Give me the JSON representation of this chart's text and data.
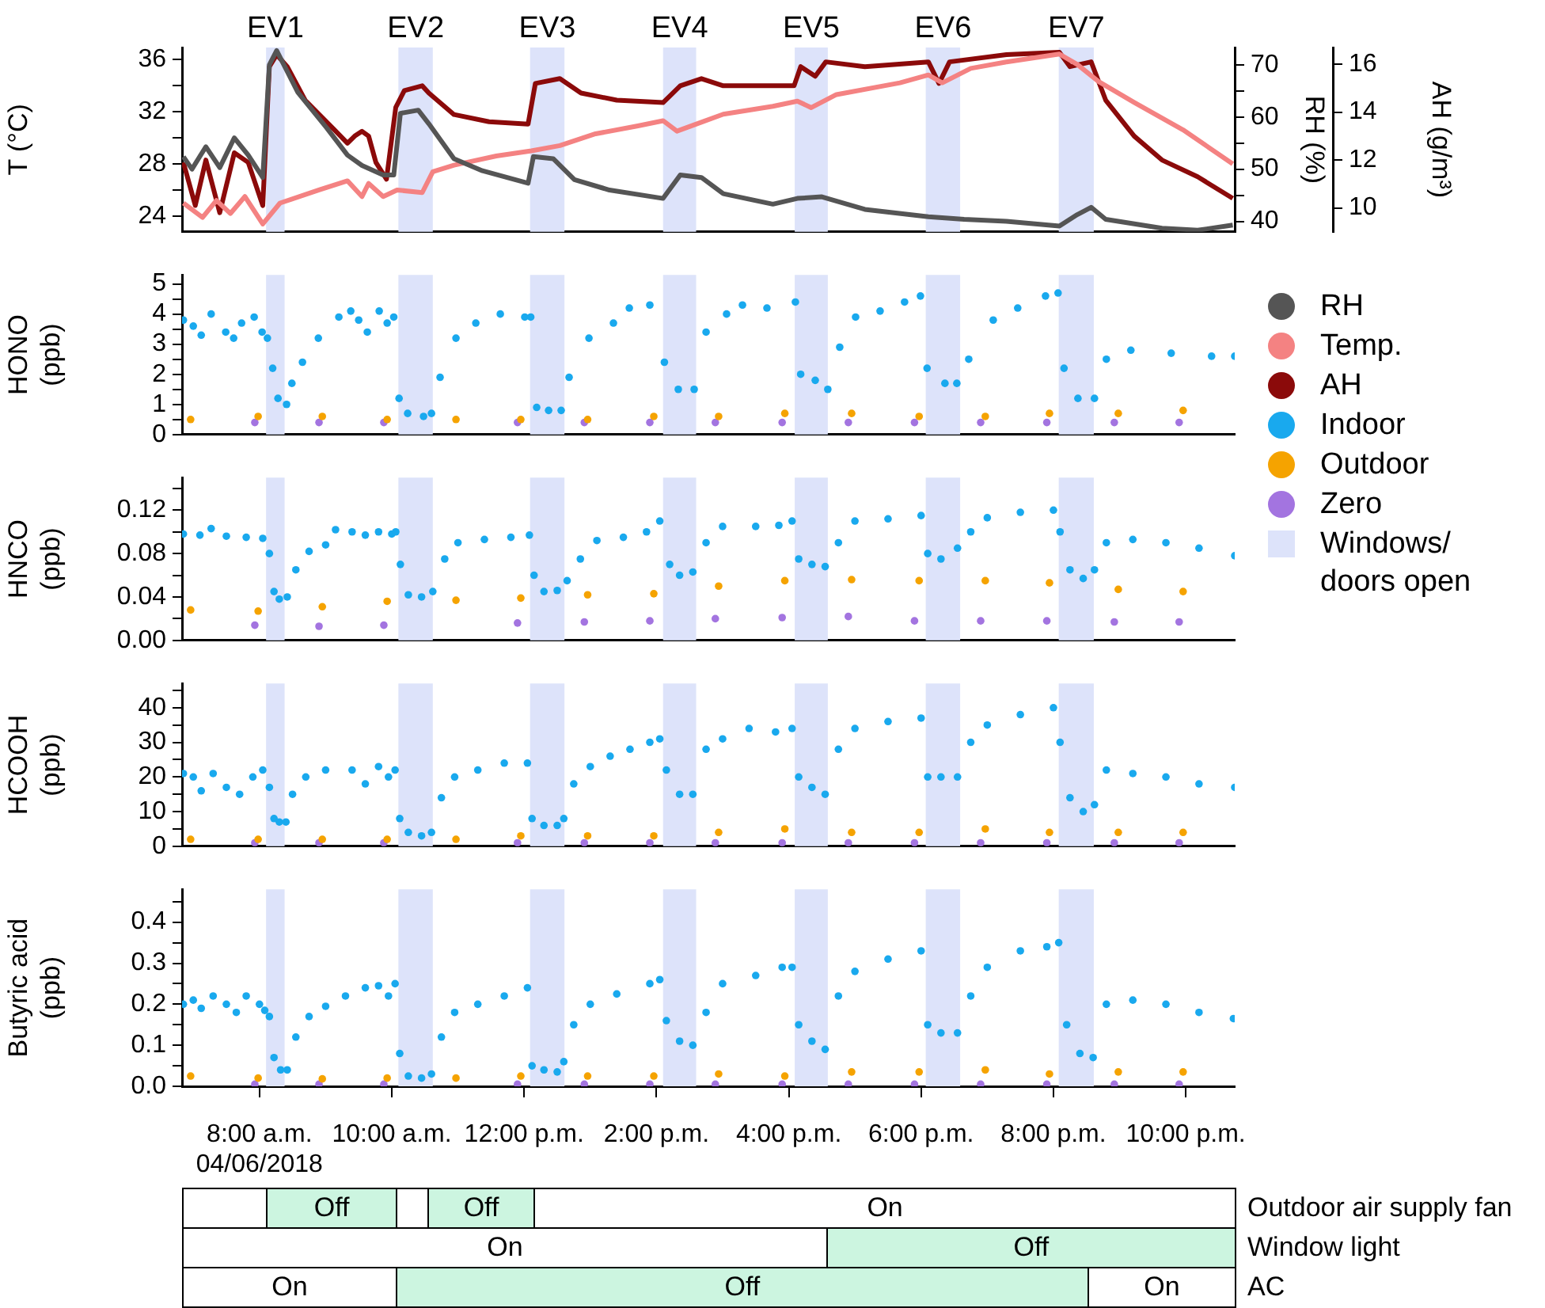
{
  "chart_data": [
    {
      "type": "line",
      "marker": "none",
      "tick_labels": "y",
      "legend": "right",
      "ylabel": "T (°C)",
      "y2label": "RH (%)",
      "y3label": "AH (g/m³)",
      "xlim": [
        6.83,
        22.74
      ],
      "ylim": [
        22.8,
        36.9
      ],
      "yticks": [
        24,
        {
          "value": 26,
          "label": null
        },
        28,
        {
          "value": 30,
          "label": null
        },
        32,
        {
          "value": 34,
          "label": null
        },
        36
      ],
      "y2lim": [
        38,
        73.3
      ],
      "y2ticks": [
        40,
        {
          "value": 45,
          "label": null
        },
        50,
        {
          "value": 55,
          "label": null
        },
        60,
        {
          "value": 65,
          "label": null
        },
        70
      ],
      "y3lim": [
        9,
        16.7
      ],
      "y3ticks": [
        10,
        12,
        14,
        16
      ],
      "bands": [
        {
          "axis": "x",
          "from": 8.1,
          "to": 8.38,
          "label": "EV1",
          "color": "#dde3fa"
        },
        {
          "axis": "x",
          "from": 10.1,
          "to": 10.62,
          "label": "EV2",
          "color": "#dde3fa"
        },
        {
          "axis": "x",
          "from": 12.09,
          "to": 12.61,
          "label": "EV3",
          "color": "#dde3fa"
        },
        {
          "axis": "x",
          "from": 14.1,
          "to": 14.6,
          "label": "EV4",
          "color": "#dde3fa"
        },
        {
          "axis": "x",
          "from": 16.09,
          "to": 16.59,
          "label": "EV5",
          "color": "#dde3fa"
        },
        {
          "axis": "x",
          "from": 18.07,
          "to": 18.59,
          "label": "EV6",
          "color": "#dde3fa"
        },
        {
          "axis": "x",
          "from": 20.08,
          "to": 20.61,
          "label": "EV7",
          "color": "#dde3fa"
        }
      ],
      "series": [
        {
          "name": "RH",
          "color": "#555555",
          "axis": "y2",
          "x": [
            6.85,
            6.98,
            7.19,
            7.4,
            7.62,
            7.83,
            8.05,
            8.15,
            8.26,
            8.58,
            9.01,
            9.33,
            9.55,
            9.87,
            10.03,
            10.13,
            10.4,
            10.56,
            10.94,
            11.37,
            12.06,
            12.14,
            12.44,
            12.76,
            13.29,
            14.1,
            14.36,
            14.68,
            15.01,
            15.76,
            16.13,
            16.5,
            17.15,
            18.11,
            18.65,
            19.29,
            20.09,
            20.36,
            20.57,
            20.79,
            21.64,
            22.18,
            22.71
          ],
          "values": [
            52.4,
            50.0,
            54.3,
            50.3,
            56.0,
            52.7,
            48.4,
            70.0,
            72.7,
            64.7,
            58.0,
            52.7,
            50.7,
            48.9,
            48.9,
            60.7,
            61.3,
            58.7,
            52.0,
            49.7,
            47.3,
            52.4,
            52.0,
            48.0,
            46.0,
            44.4,
            48.9,
            48.4,
            45.3,
            43.3,
            44.4,
            44.7,
            42.3,
            40.9,
            40.4,
            40.0,
            39.1,
            41.3,
            42.7,
            40.4,
            38.7,
            38.3,
            39.3
          ]
        },
        {
          "name": "Temp.",
          "color": "#f48282",
          "x": [
            6.85,
            7.14,
            7.35,
            7.56,
            7.78,
            8.05,
            8.31,
            8.9,
            9.33,
            9.55,
            9.65,
            9.87,
            10.08,
            10.46,
            10.62,
            10.94,
            11.58,
            12.11,
            12.54,
            13.08,
            13.72,
            14.1,
            14.31,
            14.58,
            15.01,
            15.76,
            16.13,
            16.34,
            16.72,
            17.68,
            18.11,
            18.32,
            18.75,
            19.29,
            20.09,
            20.36,
            20.68,
            21.22,
            21.96,
            22.71
          ],
          "values": [
            25.0,
            23.9,
            25.2,
            24.2,
            25.5,
            23.4,
            25.0,
            26.0,
            26.7,
            25.5,
            26.5,
            25.5,
            26.0,
            25.8,
            27.4,
            27.9,
            28.6,
            29.0,
            29.4,
            30.3,
            30.9,
            31.3,
            30.5,
            31.0,
            31.8,
            32.4,
            32.8,
            32.3,
            33.3,
            34.2,
            34.8,
            34.2,
            35.3,
            35.8,
            36.4,
            35.6,
            34.3,
            32.7,
            30.6,
            28.0
          ]
        },
        {
          "name": "AH",
          "color": "#8b0a0a",
          "axis": "y3",
          "x": [
            6.85,
            7.03,
            7.19,
            7.4,
            7.62,
            7.83,
            8.05,
            8.15,
            8.26,
            8.42,
            8.69,
            9.12,
            9.33,
            9.44,
            9.55,
            9.65,
            9.76,
            9.92,
            10.06,
            10.19,
            10.46,
            10.56,
            10.94,
            11.47,
            12.06,
            12.17,
            12.54,
            12.86,
            13.4,
            14.1,
            14.36,
            14.68,
            15.01,
            16.08,
            16.18,
            16.4,
            16.56,
            17.15,
            18.11,
            18.27,
            18.43,
            19.29,
            20.09,
            20.25,
            20.57,
            20.79,
            21.22,
            21.64,
            22.18,
            22.71
          ],
          "values": [
            11.9,
            10.1,
            12.0,
            9.8,
            12.3,
            11.9,
            10.1,
            15.9,
            16.4,
            15.9,
            14.5,
            13.3,
            12.7,
            13.0,
            13.2,
            13.0,
            11.9,
            11.2,
            14.2,
            14.9,
            15.1,
            14.8,
            13.9,
            13.6,
            13.5,
            15.2,
            15.4,
            14.8,
            14.5,
            14.4,
            15.1,
            15.4,
            15.1,
            15.1,
            15.9,
            15.5,
            16.1,
            15.9,
            16.1,
            15.2,
            16.1,
            16.4,
            16.5,
            15.9,
            16.1,
            14.5,
            13.0,
            12.0,
            11.3,
            10.4
          ]
        }
      ]
    },
    {
      "type": "scatter",
      "marker": "circle",
      "tick_labels": "y",
      "legend": "right",
      "ylabel": "HONO\n(ppb)",
      "xlim": [
        6.83,
        22.74
      ],
      "ylim": [
        0,
        5.3
      ],
      "yticks": [
        0,
        {
          "value": 0.5,
          "label": null
        },
        1,
        {
          "value": 1.5,
          "label": null
        },
        2,
        {
          "value": 2.5,
          "label": null
        },
        3,
        {
          "value": 3.5,
          "label": null
        },
        4,
        {
          "value": 4.5,
          "label": null
        },
        5
      ],
      "annotations": [
        "Windows/\ndoors open"
      ],
      "bands": [
        {
          "axis": "x",
          "from": 8.1,
          "to": 8.38,
          "color": "#dde3fa"
        },
        {
          "axis": "x",
          "from": 10.1,
          "to": 10.62,
          "color": "#dde3fa"
        },
        {
          "axis": "x",
          "from": 12.09,
          "to": 12.61,
          "color": "#dde3fa"
        },
        {
          "axis": "x",
          "from": 14.1,
          "to": 14.6,
          "color": "#dde3fa"
        },
        {
          "axis": "x",
          "from": 16.09,
          "to": 16.59,
          "color": "#dde3fa"
        },
        {
          "axis": "x",
          "from": 18.07,
          "to": 18.59,
          "color": "#dde3fa"
        },
        {
          "axis": "x",
          "from": 20.08,
          "to": 20.61,
          "color": "#dde3fa"
        }
      ],
      "series": [
        {
          "name": "Indoor",
          "color": "#19a9ee",
          "x": [
            6.85,
            7.0,
            7.12,
            7.27,
            7.49,
            7.61,
            7.73,
            7.92,
            8.04,
            8.12,
            8.2,
            8.28,
            8.41,
            8.49,
            8.65,
            8.89,
            9.2,
            9.38,
            9.5,
            9.63,
            9.81,
            9.93,
            10.03,
            10.11,
            10.24,
            10.48,
            10.6,
            10.73,
            10.97,
            11.27,
            11.64,
            12.01,
            12.1,
            12.19,
            12.37,
            12.56,
            12.68,
            12.98,
            13.35,
            13.59,
            13.9,
            14.12,
            14.33,
            14.57,
            14.75,
            15.06,
            15.3,
            15.67,
            16.1,
            16.18,
            16.4,
            16.59,
            16.77,
            17.01,
            17.38,
            17.75,
            17.99,
            18.09,
            18.36,
            18.54,
            18.72,
            19.09,
            19.46,
            19.88,
            20.07,
            20.16,
            20.37,
            20.62,
            20.8,
            21.17,
            21.78,
            22.39,
            22.74
          ],
          "values": [
            3.8,
            3.6,
            3.3,
            4.0,
            3.4,
            3.2,
            3.7,
            3.9,
            3.4,
            3.2,
            2.2,
            1.2,
            1.0,
            1.7,
            2.4,
            3.2,
            3.9,
            4.1,
            3.8,
            3.4,
            4.1,
            3.7,
            3.9,
            1.2,
            0.7,
            0.6,
            0.7,
            1.9,
            3.2,
            3.7,
            4.0,
            3.9,
            3.9,
            0.9,
            0.8,
            0.8,
            1.9,
            3.2,
            3.7,
            4.2,
            4.3,
            2.4,
            1.5,
            1.5,
            3.4,
            4.0,
            4.3,
            4.2,
            4.4,
            2.0,
            1.8,
            1.5,
            2.9,
            3.9,
            4.1,
            4.4,
            4.6,
            2.2,
            1.7,
            1.7,
            2.5,
            3.8,
            4.2,
            4.6,
            4.7,
            2.2,
            1.2,
            1.2,
            2.5,
            2.8,
            2.7,
            2.6,
            2.6
          ]
        },
        {
          "name": "Outdoor",
          "color": "#f5a300",
          "x": [
            6.96,
            7.98,
            8.95,
            9.93,
            10.97,
            11.95,
            12.96,
            13.96,
            14.94,
            15.94,
            16.95,
            17.97,
            18.97,
            19.94,
            20.98,
            21.96
          ],
          "values": [
            0.5,
            0.6,
            0.6,
            0.5,
            0.5,
            0.5,
            0.5,
            0.6,
            0.6,
            0.7,
            0.7,
            0.6,
            0.6,
            0.7,
            0.7,
            0.8
          ]
        },
        {
          "name": "Zero",
          "color": "#a374e0",
          "x": [
            7.93,
            8.9,
            9.88,
            11.9,
            12.91,
            13.9,
            14.89,
            15.9,
            16.9,
            17.9,
            18.9,
            19.9,
            20.92,
            21.9
          ],
          "values": [
            0.4,
            0.4,
            0.4,
            0.4,
            0.4,
            0.4,
            0.4,
            0.4,
            0.4,
            0.4,
            0.4,
            0.4,
            0.4,
            0.4
          ]
        }
      ]
    },
    {
      "type": "scatter",
      "marker": "circle",
      "tick_labels": "y",
      "ylabel": "HNCO\n(ppb)",
      "xlim": [
        6.83,
        22.74
      ],
      "ylim": [
        0,
        0.15
      ],
      "yticks": [
        {
          "value": 0,
          "label": "0.00"
        },
        {
          "value": 0.02,
          "label": null
        },
        0.04,
        {
          "value": 0.06,
          "label": null
        },
        0.08,
        {
          "value": 0.1,
          "label": null
        },
        0.12,
        {
          "value": 0.14,
          "label": null
        }
      ],
      "bands": [
        {
          "axis": "x",
          "from": 8.1,
          "to": 8.38,
          "color": "#dde3fa"
        },
        {
          "axis": "x",
          "from": 10.1,
          "to": 10.62,
          "color": "#dde3fa"
        },
        {
          "axis": "x",
          "from": 12.09,
          "to": 12.61,
          "color": "#dde3fa"
        },
        {
          "axis": "x",
          "from": 14.1,
          "to": 14.6,
          "color": "#dde3fa"
        },
        {
          "axis": "x",
          "from": 16.09,
          "to": 16.59,
          "color": "#dde3fa"
        },
        {
          "axis": "x",
          "from": 18.07,
          "to": 18.59,
          "color": "#dde3fa"
        },
        {
          "axis": "x",
          "from": 20.08,
          "to": 20.61,
          "color": "#dde3fa"
        }
      ],
      "series": [
        {
          "color": "#19a9ee",
          "x": [
            6.85,
            7.1,
            7.27,
            7.5,
            7.8,
            8.05,
            8.15,
            8.22,
            8.3,
            8.42,
            8.55,
            8.75,
            9.0,
            9.15,
            9.4,
            9.6,
            9.8,
            10.0,
            10.06,
            10.13,
            10.25,
            10.45,
            10.62,
            10.8,
            11.0,
            11.4,
            11.8,
            12.08,
            12.15,
            12.3,
            12.5,
            12.65,
            12.85,
            13.1,
            13.5,
            13.85,
            14.05,
            14.2,
            14.35,
            14.55,
            14.75,
            15.0,
            15.5,
            15.85,
            16.05,
            16.15,
            16.35,
            16.55,
            16.75,
            17.0,
            17.5,
            18.0,
            18.1,
            18.3,
            18.55,
            18.75,
            19.0,
            19.5,
            20.0,
            20.1,
            20.25,
            20.45,
            20.62,
            20.8,
            21.2,
            21.7,
            22.2,
            22.74
          ],
          "values": [
            0.098,
            0.097,
            0.103,
            0.096,
            0.095,
            0.094,
            0.08,
            0.045,
            0.038,
            0.04,
            0.065,
            0.082,
            0.088,
            0.102,
            0.1,
            0.097,
            0.1,
            0.098,
            0.1,
            0.07,
            0.042,
            0.04,
            0.045,
            0.075,
            0.09,
            0.093,
            0.095,
            0.097,
            0.06,
            0.045,
            0.046,
            0.055,
            0.075,
            0.092,
            0.095,
            0.1,
            0.11,
            0.07,
            0.06,
            0.063,
            0.09,
            0.105,
            0.105,
            0.106,
            0.11,
            0.075,
            0.07,
            0.068,
            0.09,
            0.11,
            0.112,
            0.115,
            0.08,
            0.075,
            0.085,
            0.1,
            0.113,
            0.118,
            0.12,
            0.1,
            0.065,
            0.057,
            0.065,
            0.09,
            0.093,
            0.09,
            0.085,
            0.078
          ]
        },
        {
          "color": "#f5a300",
          "x": [
            6.96,
            7.98,
            8.95,
            9.93,
            10.97,
            11.95,
            12.96,
            13.96,
            14.94,
            15.94,
            16.95,
            17.97,
            18.97,
            19.94,
            20.98,
            21.96
          ],
          "values": [
            0.028,
            0.027,
            0.031,
            0.036,
            0.037,
            0.039,
            0.042,
            0.043,
            0.05,
            0.055,
            0.056,
            0.055,
            0.055,
            0.053,
            0.047,
            0.045
          ]
        },
        {
          "color": "#a374e0",
          "x": [
            7.93,
            8.9,
            9.88,
            11.9,
            12.91,
            13.9,
            14.89,
            15.9,
            16.9,
            17.9,
            18.9,
            19.9,
            20.92,
            21.9
          ],
          "values": [
            0.014,
            0.013,
            0.014,
            0.016,
            0.017,
            0.018,
            0.02,
            0.021,
            0.022,
            0.018,
            0.018,
            0.018,
            0.017,
            0.017
          ]
        }
      ]
    },
    {
      "type": "scatter",
      "marker": "circle",
      "tick_labels": "y",
      "ylabel": "HCOOH\n(ppb)",
      "xlim": [
        6.83,
        22.74
      ],
      "ylim": [
        0,
        47
      ],
      "yticks": [
        0,
        {
          "value": 5,
          "label": null
        },
        10,
        {
          "value": 15,
          "label": null
        },
        20,
        {
          "value": 25,
          "label": null
        },
        30,
        {
          "value": 35,
          "label": null
        },
        40,
        {
          "value": 45,
          "label": null
        }
      ],
      "bands": [
        {
          "axis": "x",
          "from": 8.1,
          "to": 8.38,
          "color": "#dde3fa"
        },
        {
          "axis": "x",
          "from": 10.1,
          "to": 10.62,
          "color": "#dde3fa"
        },
        {
          "axis": "x",
          "from": 12.09,
          "to": 12.61,
          "color": "#dde3fa"
        },
        {
          "axis": "x",
          "from": 14.1,
          "to": 14.6,
          "color": "#dde3fa"
        },
        {
          "axis": "x",
          "from": 16.09,
          "to": 16.59,
          "color": "#dde3fa"
        },
        {
          "axis": "x",
          "from": 18.07,
          "to": 18.59,
          "color": "#dde3fa"
        },
        {
          "axis": "x",
          "from": 20.08,
          "to": 20.61,
          "color": "#dde3fa"
        }
      ],
      "series": [
        {
          "color": "#19a9ee",
          "x": [
            6.85,
            7.0,
            7.12,
            7.3,
            7.5,
            7.7,
            7.9,
            8.05,
            8.15,
            8.22,
            8.3,
            8.4,
            8.5,
            8.7,
            9.0,
            9.4,
            9.6,
            9.8,
            9.95,
            10.05,
            10.12,
            10.25,
            10.45,
            10.6,
            10.75,
            10.95,
            11.3,
            11.7,
            12.05,
            12.12,
            12.3,
            12.5,
            12.6,
            12.75,
            13.0,
            13.3,
            13.6,
            13.9,
            14.05,
            14.15,
            14.35,
            14.55,
            14.75,
            15.0,
            15.4,
            15.8,
            16.05,
            16.15,
            16.35,
            16.55,
            16.75,
            17.0,
            17.5,
            18.0,
            18.1,
            18.3,
            18.55,
            18.75,
            19.0,
            19.5,
            20.0,
            20.1,
            20.25,
            20.45,
            20.62,
            20.8,
            21.2,
            21.7,
            22.2,
            22.74
          ],
          "values": [
            21,
            20,
            16,
            21,
            17,
            15,
            20,
            22,
            17,
            8,
            7,
            7,
            15,
            20,
            22,
            22,
            18,
            23,
            20,
            22,
            8,
            4,
            3,
            4,
            14,
            20,
            22,
            24,
            24,
            8,
            6,
            6,
            8,
            18,
            23,
            26,
            28,
            30,
            31,
            22,
            15,
            15,
            28,
            31,
            34,
            33,
            34,
            20,
            17,
            15,
            28,
            34,
            36,
            37,
            20,
            20,
            20,
            30,
            35,
            38,
            40,
            30,
            14,
            10,
            12,
            22,
            21,
            20,
            18,
            17
          ]
        },
        {
          "color": "#f5a300",
          "x": [
            6.96,
            7.98,
            8.95,
            9.93,
            10.97,
            11.95,
            12.96,
            13.96,
            14.94,
            15.94,
            16.95,
            17.97,
            18.97,
            19.94,
            20.98,
            21.96
          ],
          "values": [
            2,
            2,
            2,
            2,
            2,
            3,
            3,
            3,
            4,
            5,
            4,
            4,
            5,
            4,
            4,
            4
          ]
        },
        {
          "color": "#a374e0",
          "x": [
            7.93,
            8.9,
            9.88,
            11.9,
            12.91,
            13.9,
            14.89,
            15.9,
            16.9,
            17.9,
            18.9,
            19.9,
            20.92,
            21.9
          ],
          "values": [
            1,
            1,
            1,
            1,
            1,
            1,
            1,
            1,
            1,
            1,
            1,
            1,
            1,
            1
          ]
        }
      ]
    },
    {
      "type": "scatter",
      "marker": "circle",
      "ylabel": "Butyric acid\n(ppb)",
      "xlim": [
        6.83,
        22.74
      ],
      "xticks": [
        {
          "value": 8,
          "label": "8:00 a.m.\n04/06/2018"
        },
        {
          "value": 10,
          "label": "10:00 a.m."
        },
        {
          "value": 12,
          "label": "12:00 p.m."
        },
        {
          "value": 14,
          "label": "2:00 p.m."
        },
        {
          "value": 16,
          "label": "4:00 p.m."
        },
        {
          "value": 18,
          "label": "6:00 p.m."
        },
        {
          "value": 20,
          "label": "8:00 p.m."
        },
        {
          "value": 22,
          "label": "10:00 p.m."
        }
      ],
      "ylim": [
        0,
        0.48
      ],
      "yticks": [
        {
          "value": 0,
          "label": "0.0"
        },
        {
          "value": 0.05,
          "label": null
        },
        0.1,
        {
          "value": 0.15,
          "label": null
        },
        0.2,
        {
          "value": 0.25,
          "label": null
        },
        0.3,
        {
          "value": 0.35,
          "label": null
        },
        0.4,
        {
          "value": 0.45,
          "label": null
        }
      ],
      "bands": [
        {
          "axis": "x",
          "from": 8.1,
          "to": 8.38,
          "color": "#dde3fa"
        },
        {
          "axis": "x",
          "from": 10.1,
          "to": 10.62,
          "color": "#dde3fa"
        },
        {
          "axis": "x",
          "from": 12.09,
          "to": 12.61,
          "color": "#dde3fa"
        },
        {
          "axis": "x",
          "from": 14.1,
          "to": 14.6,
          "color": "#dde3fa"
        },
        {
          "axis": "x",
          "from": 16.09,
          "to": 16.59,
          "color": "#dde3fa"
        },
        {
          "axis": "x",
          "from": 18.07,
          "to": 18.59,
          "color": "#dde3fa"
        },
        {
          "axis": "x",
          "from": 20.08,
          "to": 20.61,
          "color": "#dde3fa"
        }
      ],
      "series": [
        {
          "color": "#19a9ee",
          "x": [
            6.85,
            7.0,
            7.12,
            7.3,
            7.5,
            7.65,
            7.8,
            8.0,
            8.08,
            8.15,
            8.22,
            8.32,
            8.42,
            8.55,
            8.75,
            9.0,
            9.3,
            9.6,
            9.8,
            9.95,
            10.05,
            10.12,
            10.25,
            10.45,
            10.6,
            10.75,
            10.95,
            11.3,
            11.7,
            12.05,
            12.12,
            12.3,
            12.5,
            12.6,
            12.75,
            13.0,
            13.4,
            13.9,
            14.05,
            14.15,
            14.35,
            14.55,
            14.75,
            15.0,
            15.5,
            15.9,
            16.05,
            16.15,
            16.35,
            16.55,
            16.75,
            17.0,
            17.5,
            18.0,
            18.1,
            18.3,
            18.55,
            18.75,
            19.0,
            19.5,
            19.9,
            20.08,
            20.2,
            20.4,
            20.6,
            20.8,
            21.2,
            21.7,
            22.2,
            22.72
          ],
          "values": [
            0.2,
            0.21,
            0.19,
            0.22,
            0.2,
            0.18,
            0.22,
            0.2,
            0.185,
            0.17,
            0.07,
            0.04,
            0.04,
            0.12,
            0.17,
            0.195,
            0.22,
            0.24,
            0.245,
            0.22,
            0.25,
            0.08,
            0.025,
            0.02,
            0.03,
            0.12,
            0.18,
            0.2,
            0.22,
            0.24,
            0.05,
            0.04,
            0.035,
            0.06,
            0.15,
            0.2,
            0.225,
            0.25,
            0.26,
            0.16,
            0.11,
            0.1,
            0.18,
            0.25,
            0.27,
            0.29,
            0.29,
            0.15,
            0.11,
            0.09,
            0.22,
            0.28,
            0.31,
            0.33,
            0.15,
            0.13,
            0.13,
            0.22,
            0.29,
            0.33,
            0.34,
            0.35,
            0.15,
            0.08,
            0.07,
            0.2,
            0.21,
            0.2,
            0.18,
            0.165
          ]
        },
        {
          "color": "#f5a300",
          "x": [
            6.96,
            7.98,
            8.95,
            9.93,
            10.97,
            11.95,
            12.96,
            13.96,
            14.94,
            15.94,
            16.95,
            17.97,
            18.97,
            19.94,
            20.98,
            21.96
          ],
          "values": [
            0.025,
            0.02,
            0.018,
            0.02,
            0.02,
            0.025,
            0.025,
            0.025,
            0.03,
            0.025,
            0.035,
            0.035,
            0.04,
            0.03,
            0.035,
            0.035
          ]
        },
        {
          "color": "#a374e0",
          "x": [
            7.93,
            8.9,
            9.88,
            11.9,
            12.91,
            13.9,
            14.89,
            15.9,
            16.9,
            17.9,
            18.9,
            19.9,
            20.92,
            21.9
          ],
          "values": [
            0.005,
            0.005,
            0.005,
            0.005,
            0.005,
            0.005,
            0.005,
            0.005,
            0.005,
            0.005,
            0.005,
            0.005,
            0.005,
            0.005
          ]
        }
      ]
    },
    {
      "type": "other",
      "ylabel": "Outdoor air supply fan",
      "annotations": [
        "Off",
        "Off",
        "On"
      ],
      "colors": [
        "#ccf5e0",
        "#ccf5e0",
        "#ffffff"
      ]
    },
    {
      "type": "other",
      "ylabel": "Window light",
      "annotations": [
        "On",
        "Off"
      ],
      "colors": [
        "#ffffff",
        "#ccf5e0"
      ]
    },
    {
      "type": "other",
      "ylabel": "AC",
      "annotations": [
        "On",
        "Off",
        "On"
      ],
      "colors": [
        "#ffffff",
        "#ccf5e0",
        "#ffffff"
      ]
    }
  ]
}
